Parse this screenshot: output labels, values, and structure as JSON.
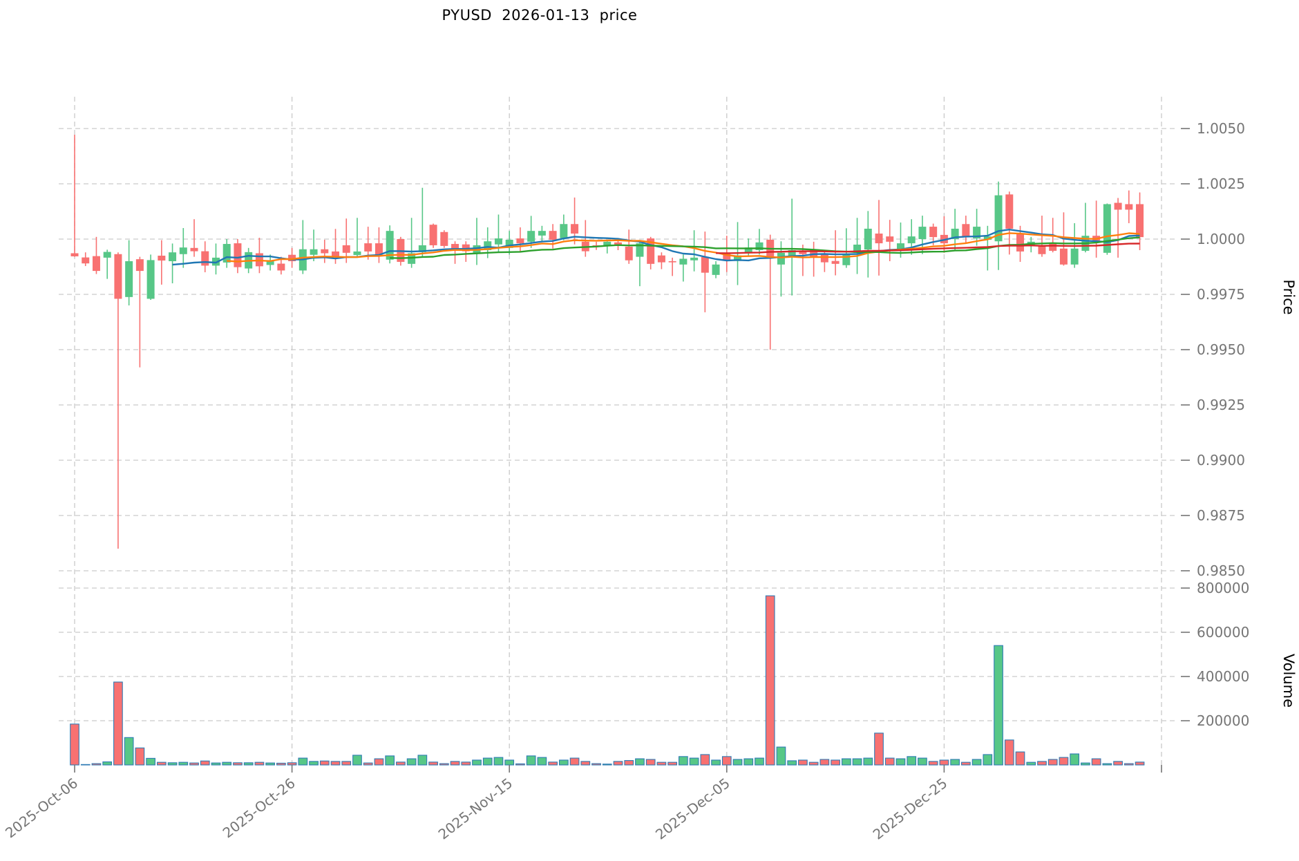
{
  "title": "PYUSD  2026-01-13  price",
  "chart_data": {
    "type": "candlestick",
    "title": "PYUSD  2026-01-13  price",
    "price_axis": {
      "label": "Price",
      "ticks": [
        1.005,
        1.0025,
        1.0,
        0.9975,
        0.995,
        0.9925,
        0.99,
        0.9875,
        0.985
      ],
      "range": [
        0.9838,
        1.0064
      ]
    },
    "volume_axis": {
      "label": "Volume",
      "ticks": [
        800000,
        600000,
        400000,
        200000
      ],
      "range": [
        0,
        880000
      ]
    },
    "x_tick_labels": [
      "2025-Oct-06",
      "2025-Oct-26",
      "2025-Nov-15",
      "2025-Dec-05",
      "2025-Dec-25"
    ],
    "x_gridline_count": 6,
    "grid": true,
    "legend_position": "none",
    "ma_overlays": [
      {
        "period": 10,
        "color": "#1f77b4"
      },
      {
        "period": 15,
        "color": "#ff7f0e"
      },
      {
        "period": 30,
        "color": "#2ca02c"
      },
      {
        "period": 60,
        "color": "#d62728"
      }
    ],
    "colors": {
      "up": "#57c787",
      "down": "#f87171",
      "volume_edge": "#2e7bb5",
      "grid": "#c9c9c9",
      "tick_text": "#757575",
      "axis_title_text": "#000000"
    },
    "ohlcv": [
      [
        "2025-10-06",
        0.99936,
        1.00472,
        0.9992,
        0.99922,
        185000
      ],
      [
        "2025-10-07",
        0.99917,
        0.9994,
        0.99878,
        0.9989,
        2000
      ],
      [
        "2025-10-08",
        0.99923,
        1.0001,
        0.99842,
        0.99856,
        6000
      ],
      [
        "2025-10-09",
        0.99916,
        0.99952,
        0.9982,
        0.99942,
        14000
      ],
      [
        "2025-10-10",
        0.99932,
        0.9994,
        0.986,
        0.9973,
        375000
      ],
      [
        "2025-10-11",
        0.99738,
        0.99995,
        0.997,
        0.999,
        124000
      ],
      [
        "2025-10-12",
        0.99909,
        0.9992,
        0.9942,
        0.99856,
        77000
      ],
      [
        "2025-10-13",
        0.9973,
        0.9993,
        0.99725,
        0.99905,
        30000
      ],
      [
        "2025-10-14",
        0.99925,
        0.99995,
        0.99794,
        0.99903,
        12000
      ],
      [
        "2025-10-15",
        0.999,
        0.9998,
        0.998,
        0.9994,
        10000
      ],
      [
        "2025-10-16",
        0.99932,
        1.0005,
        0.9987,
        0.99962,
        12000
      ],
      [
        "2025-10-17",
        0.9996,
        1.0009,
        0.9992,
        0.99945,
        9000
      ],
      [
        "2025-10-18",
        0.99945,
        0.9999,
        0.9985,
        0.9988,
        18000
      ],
      [
        "2025-10-19",
        0.9988,
        0.9998,
        0.9984,
        0.99916,
        9000
      ],
      [
        "2025-10-20",
        0.99894,
        1.0,
        0.9987,
        0.99978,
        12000
      ],
      [
        "2025-10-21",
        0.99981,
        1.0,
        0.99846,
        0.99873,
        10000
      ],
      [
        "2025-10-22",
        0.99867,
        0.9996,
        0.99846,
        0.99941,
        10000
      ],
      [
        "2025-10-23",
        0.99936,
        1.00006,
        0.99846,
        0.99877,
        12000
      ],
      [
        "2025-10-24",
        0.99883,
        0.9993,
        0.99858,
        0.99905,
        9000
      ],
      [
        "2025-10-25",
        0.99889,
        0.9992,
        0.9984,
        0.99858,
        8000
      ],
      [
        "2025-10-26",
        0.99929,
        0.9996,
        0.9987,
        0.999,
        10000
      ],
      [
        "2025-10-27",
        0.99858,
        1.00086,
        0.99842,
        0.99954,
        31000
      ],
      [
        "2025-10-28",
        0.99929,
        1.00043,
        0.999,
        0.99954,
        16000
      ],
      [
        "2025-10-29",
        0.99954,
        0.99997,
        0.99892,
        0.99936,
        18000
      ],
      [
        "2025-10-30",
        0.99944,
        1.00046,
        0.99888,
        0.99923,
        16000
      ],
      [
        "2025-10-31",
        0.99972,
        1.00093,
        0.99892,
        0.99938,
        16000
      ],
      [
        "2025-11-01",
        0.99928,
        1.00096,
        0.99918,
        0.99944,
        44000
      ],
      [
        "2025-11-02",
        0.99981,
        1.00056,
        0.99907,
        0.99944,
        9000
      ],
      [
        "2025-11-03",
        0.99981,
        1.00053,
        0.99892,
        0.99929,
        28000
      ],
      [
        "2025-11-04",
        0.99907,
        1.00062,
        0.9989,
        1.00037,
        41000
      ],
      [
        "2025-11-05",
        1.0,
        1.0001,
        0.9988,
        0.99897,
        13000
      ],
      [
        "2025-11-06",
        0.99888,
        1.00096,
        0.9987,
        0.99936,
        28000
      ],
      [
        "2025-11-07",
        0.99941,
        1.00232,
        0.99918,
        0.99972,
        44000
      ],
      [
        "2025-11-08",
        1.00065,
        1.0007,
        0.9996,
        0.99972,
        13000
      ],
      [
        "2025-11-09",
        1.00032,
        1.0004,
        0.9996,
        0.99969,
        6000
      ],
      [
        "2025-11-10",
        0.99978,
        0.9999,
        0.99888,
        0.99957,
        16000
      ],
      [
        "2025-11-11",
        0.99976,
        0.9999,
        0.99897,
        0.99945,
        13000
      ],
      [
        "2025-11-12",
        0.99935,
        1.00096,
        0.99883,
        0.99972,
        22000
      ],
      [
        "2025-11-13",
        0.9995,
        1.00053,
        0.99914,
        0.9999,
        31000
      ],
      [
        "2025-11-14",
        0.99976,
        1.00111,
        0.9994,
        1.00003,
        34000
      ],
      [
        "2025-11-15",
        0.9996,
        1.00037,
        0.9993,
        0.99997,
        22000
      ],
      [
        "2025-11-16",
        1.00003,
        1.00053,
        0.9994,
        0.99981,
        5000
      ],
      [
        "2025-11-17",
        0.99988,
        1.00105,
        0.9996,
        1.00037,
        41000
      ],
      [
        "2025-11-18",
        1.00016,
        1.0006,
        0.9999,
        1.00037,
        34000
      ],
      [
        "2025-11-19",
        1.00037,
        1.00068,
        0.99957,
        0.99997,
        13000
      ],
      [
        "2025-11-20",
        1.00004,
        1.00111,
        0.99995,
        1.00068,
        22000
      ],
      [
        "2025-11-21",
        1.00068,
        1.00188,
        0.99976,
        1.00025,
        31000
      ],
      [
        "2025-11-22",
        0.99988,
        1.00086,
        0.9992,
        0.99945,
        16000
      ],
      [
        "2025-11-23",
        0.99972,
        0.99988,
        0.99951,
        0.99966,
        6000
      ],
      [
        "2025-11-24",
        0.99969,
        0.9999,
        0.99935,
        0.99988,
        4000
      ],
      [
        "2025-11-25",
        0.99985,
        1.0,
        0.9995,
        0.9997,
        16000
      ],
      [
        "2025-11-26",
        0.99966,
        1.00043,
        0.99888,
        0.99904,
        20000
      ],
      [
        "2025-11-27",
        0.9992,
        0.9999,
        0.99787,
        0.99981,
        28000
      ],
      [
        "2025-11-28",
        1.00003,
        1.0001,
        0.99863,
        0.99888,
        25000
      ],
      [
        "2025-11-29",
        0.99926,
        0.9994,
        0.99864,
        0.99895,
        12000
      ],
      [
        "2025-11-30",
        0.999,
        0.99916,
        0.99833,
        0.99895,
        12000
      ],
      [
        "2025-12-01",
        0.99885,
        0.9993,
        0.99808,
        0.99911,
        38000
      ],
      [
        "2025-12-02",
        0.99904,
        1.0004,
        0.99854,
        0.99916,
        31000
      ],
      [
        "2025-12-03",
        0.99919,
        1.00034,
        0.99669,
        0.99848,
        47000
      ],
      [
        "2025-12-04",
        0.99838,
        0.999,
        0.99823,
        0.99885,
        22000
      ],
      [
        "2025-12-05",
        0.99938,
        1.00015,
        0.99851,
        0.99907,
        38000
      ],
      [
        "2025-12-06",
        0.99901,
        1.00077,
        0.99792,
        0.99926,
        25000
      ],
      [
        "2025-12-07",
        0.99938,
        1.00003,
        0.9992,
        0.99962,
        28000
      ],
      [
        "2025-12-08",
        0.9995,
        1.00046,
        0.9993,
        0.99985,
        31000
      ],
      [
        "2025-12-09",
        0.99997,
        1.0002,
        0.995,
        0.99913,
        765000
      ],
      [
        "2025-12-10",
        0.99885,
        0.9999,
        0.9974,
        0.99938,
        81000
      ],
      [
        "2025-12-11",
        0.9992,
        1.00183,
        0.99745,
        0.9995,
        19000
      ],
      [
        "2025-12-12",
        0.99944,
        0.99975,
        0.99833,
        0.99932,
        22000
      ],
      [
        "2025-12-13",
        0.9995,
        0.99988,
        0.9983,
        0.9992,
        12000
      ],
      [
        "2025-12-14",
        0.99932,
        0.9995,
        0.99851,
        0.99895,
        25000
      ],
      [
        "2025-12-15",
        0.99901,
        1.0004,
        0.99836,
        0.99888,
        22000
      ],
      [
        "2025-12-16",
        0.99882,
        1.00049,
        0.9987,
        0.99932,
        28000
      ],
      [
        "2025-12-17",
        0.99938,
        1.00096,
        0.99842,
        0.99975,
        28000
      ],
      [
        "2025-12-18",
        0.99953,
        1.00127,
        0.99826,
        1.00047,
        31000
      ],
      [
        "2025-12-19",
        1.00025,
        1.00177,
        0.99835,
        0.99981,
        144000
      ],
      [
        "2025-12-20",
        1.00012,
        1.00087,
        0.999,
        0.99988,
        31000
      ],
      [
        "2025-12-21",
        0.99953,
        1.00075,
        0.99916,
        0.99981,
        28000
      ],
      [
        "2025-12-22",
        0.99981,
        1.0009,
        0.99929,
        1.00012,
        38000
      ],
      [
        "2025-12-23",
        1.0,
        1.00106,
        0.99932,
        1.00056,
        31000
      ],
      [
        "2025-12-24",
        1.00056,
        1.0007,
        0.99972,
        1.00009,
        16000
      ],
      [
        "2025-12-25",
        1.00019,
        1.00103,
        0.99938,
        0.99981,
        22000
      ],
      [
        "2025-12-26",
        1.0,
        1.00137,
        0.99948,
        1.00047,
        25000
      ],
      [
        "2025-12-27",
        1.00068,
        1.00106,
        0.99981,
        1.00012,
        12000
      ],
      [
        "2025-12-28",
        1.00003,
        1.00137,
        0.9997,
        1.00056,
        25000
      ],
      [
        "2025-12-29",
        0.99997,
        1.0006,
        0.99858,
        1.00012,
        47000
      ],
      [
        "2025-12-30",
        0.9999,
        1.0026,
        0.9986,
        1.00198,
        540000
      ],
      [
        "2025-12-31",
        1.00202,
        1.00215,
        0.9993,
        1.00047,
        113000
      ],
      [
        "2026-01-01",
        1.00022,
        1.0006,
        0.99897,
        0.99944,
        59000
      ],
      [
        "2026-01-02",
        0.99969,
        1.0001,
        0.9994,
        0.99988,
        12000
      ],
      [
        "2026-01-03",
        0.99972,
        1.00106,
        0.9992,
        0.99932,
        16000
      ],
      [
        "2026-01-04",
        0.99978,
        1.00096,
        0.9994,
        0.99947,
        25000
      ],
      [
        "2026-01-05",
        0.99957,
        1.00121,
        0.9988,
        0.99885,
        34000
      ],
      [
        "2026-01-06",
        0.99885,
        1.00072,
        0.9987,
        0.99957,
        50000
      ],
      [
        "2026-01-07",
        0.99947,
        1.00164,
        0.9994,
        1.00015,
        9000
      ],
      [
        "2026-01-08",
        1.00015,
        1.00174,
        0.99916,
        0.99994,
        28000
      ],
      [
        "2026-01-09",
        0.99938,
        1.00161,
        0.99929,
        1.00158,
        6000
      ],
      [
        "2026-01-10",
        1.00164,
        1.00186,
        0.99916,
        1.00133,
        16000
      ],
      [
        "2026-01-11",
        1.00158,
        1.0022,
        1.00072,
        1.00133,
        6000
      ],
      [
        "2026-01-12",
        1.00158,
        1.00211,
        0.9995,
        1.00009,
        13000
      ]
    ]
  }
}
